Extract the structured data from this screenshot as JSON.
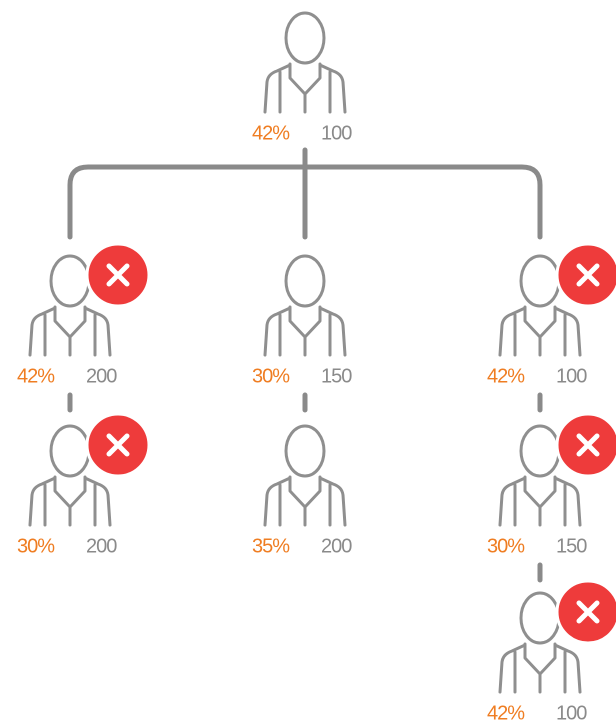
{
  "nodes": [
    {
      "percent": "42%",
      "count": "100",
      "rejected": false
    },
    {
      "percent": "42%",
      "count": "200",
      "rejected": true
    },
    {
      "percent": "30%",
      "count": "200",
      "rejected": true
    },
    {
      "percent": "30%",
      "count": "150",
      "rejected": false
    },
    {
      "percent": "35%",
      "count": "200",
      "rejected": false
    },
    {
      "percent": "42%",
      "count": "100",
      "rejected": true
    },
    {
      "percent": "30%",
      "count": "150",
      "rejected": true
    },
    {
      "percent": "42%",
      "count": "100",
      "rejected": true
    }
  ]
}
